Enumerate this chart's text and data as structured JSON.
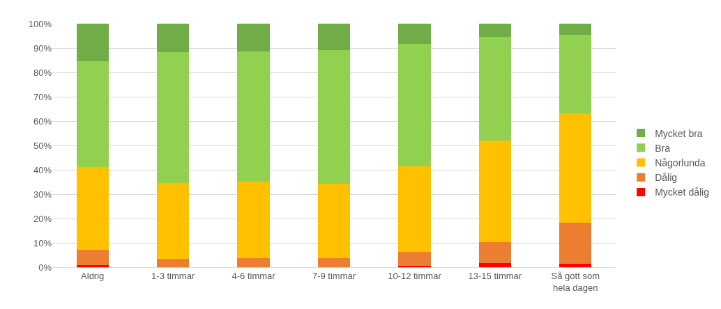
{
  "chart_data": {
    "type": "bar",
    "stacked": true,
    "categories": [
      "Aldrig",
      "1-3 timmar",
      "4-6 timmar",
      "7-9 timmar",
      "10-12 timmar",
      "13-15 timmar",
      "Så gott som\nhela dagen"
    ],
    "series": [
      {
        "name": "Mycket dålig",
        "color": "#ff0000",
        "values": [
          0.8,
          0,
          0,
          0,
          0.6,
          1.7,
          1.3
        ]
      },
      {
        "name": "Dålig",
        "color": "#ed7d31",
        "values": [
          6.4,
          3.3,
          3.7,
          3.7,
          5.7,
          8.6,
          16.9
        ]
      },
      {
        "name": "Någorlunda",
        "color": "#ffc000",
        "values": [
          34.0,
          31.4,
          31.4,
          30.5,
          35.2,
          41.8,
          44.9
        ]
      },
      {
        "name": "Bra",
        "color": "#92d050",
        "values": [
          43.4,
          53.6,
          53.6,
          55.0,
          50.3,
          42.5,
          32.4
        ]
      },
      {
        "name": "Mycket bra",
        "color": "#70ad47",
        "values": [
          15.4,
          11.7,
          11.3,
          10.8,
          8.2,
          5.4,
          4.5
        ]
      }
    ],
    "ylim": [
      0,
      100
    ],
    "yticks": [
      {
        "value": 0,
        "label": "0%"
      },
      {
        "value": 10,
        "label": "10%"
      },
      {
        "value": 20,
        "label": "20%"
      },
      {
        "value": 30,
        "label": "30%"
      },
      {
        "value": 40,
        "label": "40%"
      },
      {
        "value": 50,
        "label": "50%"
      },
      {
        "value": 60,
        "label": "60%"
      },
      {
        "value": 70,
        "label": "70%"
      },
      {
        "value": 80,
        "label": "80%"
      },
      {
        "value": 90,
        "label": "90%"
      },
      {
        "value": 100,
        "label": "100%"
      }
    ],
    "grid": "y",
    "legend": "right"
  }
}
